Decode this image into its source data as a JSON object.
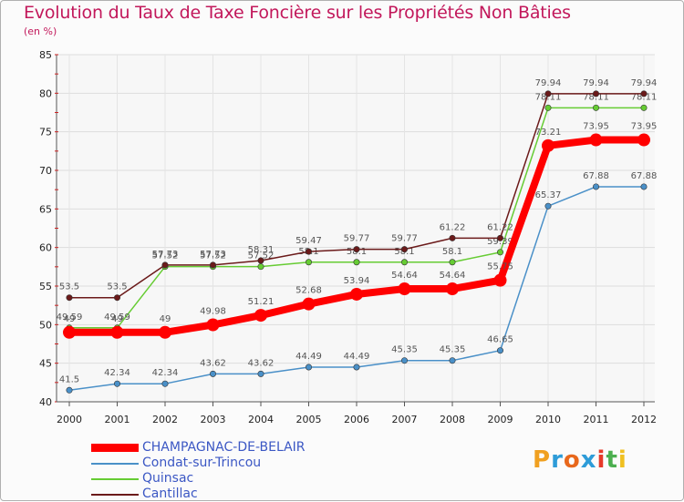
{
  "header": {
    "title": "Evolution du Taux de Taxe Foncière sur les Propriétés Non Bâties",
    "unit": "(en %)"
  },
  "logo": {
    "text": "Proxiti",
    "colors": [
      "#f0a020",
      "#2e9cd8",
      "#e8681c",
      "#2e9cd8",
      "#e63a2a",
      "#4caf50",
      "#f0c020"
    ]
  },
  "chart_data": {
    "type": "line",
    "title": "Evolution du Taux de Taxe Foncière sur les Propriétés Non Bâties",
    "ylabel": "(en %)",
    "xlabel": "",
    "x": [
      "2000",
      "2001",
      "2002",
      "2003",
      "2004",
      "2005",
      "2006",
      "2007",
      "2008",
      "2009",
      "2010",
      "2011",
      "2012"
    ],
    "ylim": [
      40,
      85
    ],
    "yticks": [
      40,
      45,
      50,
      55,
      60,
      65,
      70,
      75,
      80,
      85
    ],
    "grid": true,
    "legend_position": "bottom-left",
    "series": [
      {
        "name": "CHAMPAGNAC-DE-BELAIR",
        "color": "#ff0000",
        "values": [
          49,
          49,
          49,
          49.98,
          51.21,
          52.68,
          53.94,
          54.64,
          54.64,
          55.75,
          73.21,
          73.95,
          73.95
        ],
        "labels": [
          "49",
          "49",
          "49",
          "49.98",
          "51.21",
          "52.68",
          "53.94",
          "54.64",
          "54.64",
          "55.75",
          "73.21",
          "73.95",
          "73.95"
        ]
      },
      {
        "name": "Condat-sur-Trincou",
        "color": "#4a90c8",
        "values": [
          41.5,
          42.34,
          42.34,
          43.62,
          43.62,
          44.49,
          44.49,
          45.35,
          45.35,
          46.65,
          65.37,
          67.88,
          67.88
        ],
        "labels": [
          "41.5",
          "42.34",
          "42.34",
          "43.62",
          "43.62",
          "44.49",
          "44.49",
          "45.35",
          "45.35",
          "46.65",
          "65.37",
          "67.88",
          "67.88"
        ]
      },
      {
        "name": "Quinsac",
        "color": "#66cc33",
        "values": [
          49.59,
          49.59,
          57.52,
          57.52,
          57.52,
          58.1,
          58.1,
          58.1,
          58.1,
          59.39,
          78.11,
          78.11,
          78.11
        ],
        "labels": [
          "49.59",
          "49.59",
          "57.52",
          "57.52",
          "57.52",
          "58.1",
          "58.1",
          "58.1",
          "58.1",
          "59.39",
          "78.11",
          "78.11",
          "78.11"
        ]
      },
      {
        "name": "Cantillac",
        "color": "#6b1a1a",
        "values": [
          53.5,
          53.5,
          57.73,
          57.73,
          58.31,
          59.47,
          59.77,
          59.77,
          61.22,
          61.22,
          79.94,
          79.94,
          79.94
        ],
        "labels": [
          "53.5",
          "53.5",
          "57.73",
          "57.73",
          "58.31",
          "59.47",
          "59.77",
          "59.77",
          "61.22",
          "61.22",
          "79.94",
          "79.94",
          "79.94"
        ]
      }
    ]
  }
}
